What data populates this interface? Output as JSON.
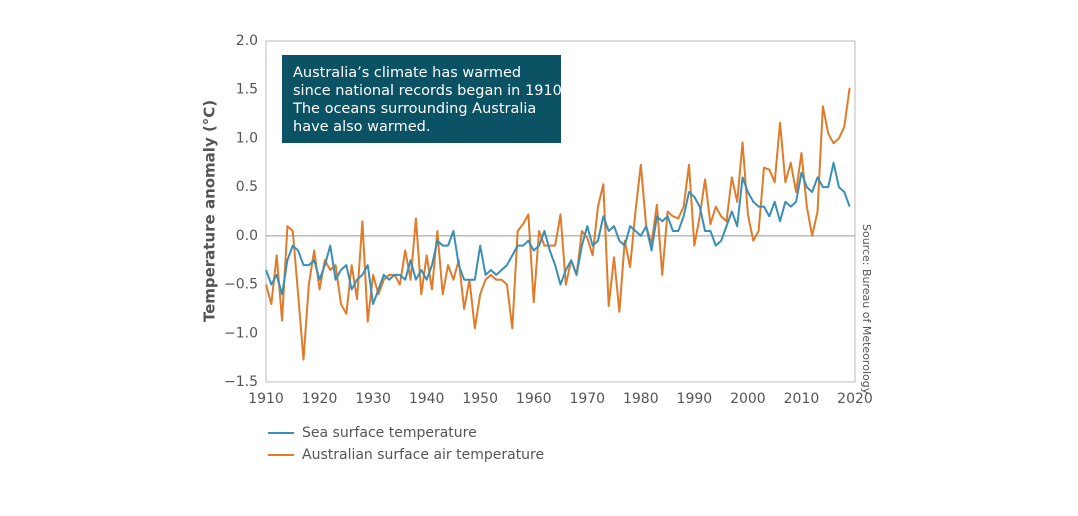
{
  "chart_data": {
    "type": "line",
    "annotation": [
      "Australia’s climate has warmed",
      "since national records began in 1910.",
      "The oceans surrounding Australia",
      "have also warmed."
    ],
    "y_label": "Temperature anomaly (°C)",
    "source": "Source: Bureau of Meteorology",
    "x": [
      1910,
      1911,
      1912,
      1913,
      1914,
      1915,
      1916,
      1917,
      1918,
      1919,
      1920,
      1921,
      1922,
      1923,
      1924,
      1925,
      1926,
      1927,
      1928,
      1929,
      1930,
      1931,
      1932,
      1933,
      1934,
      1935,
      1936,
      1937,
      1938,
      1939,
      1940,
      1941,
      1942,
      1943,
      1944,
      1945,
      1946,
      1947,
      1948,
      1949,
      1950,
      1951,
      1952,
      1953,
      1954,
      1955,
      1956,
      1957,
      1958,
      1959,
      1960,
      1961,
      1962,
      1963,
      1964,
      1965,
      1966,
      1967,
      1968,
      1969,
      1970,
      1971,
      1972,
      1973,
      1974,
      1975,
      1976,
      1977,
      1978,
      1979,
      1980,
      1981,
      1982,
      1983,
      1984,
      1985,
      1986,
      1987,
      1988,
      1989,
      1990,
      1991,
      1992,
      1993,
      1994,
      1995,
      1996,
      1997,
      1998,
      1999,
      2000,
      2001,
      2002,
      2003,
      2004,
      2005,
      2006,
      2007,
      2008,
      2009,
      2010,
      2011,
      2012,
      2013,
      2014,
      2015,
      2016,
      2017,
      2018,
      2019
    ],
    "series": [
      {
        "name": "Sea surface temperature",
        "color": "#3a8fb7",
        "values": [
          -0.35,
          -0.5,
          -0.4,
          -0.6,
          -0.25,
          -0.1,
          -0.15,
          -0.3,
          -0.3,
          -0.25,
          -0.45,
          -0.3,
          -0.1,
          -0.45,
          -0.35,
          -0.3,
          -0.55,
          -0.45,
          -0.4,
          -0.3,
          -0.7,
          -0.55,
          -0.4,
          -0.45,
          -0.4,
          -0.4,
          -0.45,
          -0.25,
          -0.45,
          -0.35,
          -0.45,
          -0.3,
          -0.05,
          -0.1,
          -0.1,
          0.05,
          -0.3,
          -0.45,
          -0.45,
          -0.45,
          -0.1,
          -0.4,
          -0.35,
          -0.4,
          -0.35,
          -0.3,
          -0.2,
          -0.1,
          -0.1,
          -0.05,
          -0.15,
          -0.1,
          0.05,
          -0.15,
          -0.3,
          -0.5,
          -0.35,
          -0.25,
          -0.4,
          -0.1,
          0.1,
          -0.1,
          -0.05,
          0.2,
          0.05,
          0.1,
          -0.05,
          -0.1,
          0.1,
          0.05,
          0.0,
          0.1,
          -0.15,
          0.2,
          0.15,
          0.2,
          0.05,
          0.05,
          0.2,
          0.45,
          0.4,
          0.3,
          0.05,
          0.05,
          -0.1,
          -0.05,
          0.1,
          0.25,
          0.1,
          0.6,
          0.45,
          0.35,
          0.3,
          0.3,
          0.2,
          0.35,
          0.15,
          0.35,
          0.3,
          0.35,
          0.65,
          0.5,
          0.45,
          0.6,
          0.5,
          0.5,
          0.75,
          0.5,
          0.45,
          0.3
        ]
      },
      {
        "name": "Australian surface air temperature",
        "color": "#e07b2a",
        "values": [
          -0.5,
          -0.7,
          -0.2,
          -0.87,
          0.1,
          0.05,
          -0.6,
          -1.27,
          -0.5,
          -0.15,
          -0.55,
          -0.25,
          -0.35,
          -0.3,
          -0.7,
          -0.8,
          -0.3,
          -0.65,
          0.15,
          -0.88,
          -0.4,
          -0.6,
          -0.45,
          -0.4,
          -0.4,
          -0.5,
          -0.15,
          -0.45,
          0.18,
          -0.6,
          -0.2,
          -0.55,
          0.05,
          -0.6,
          -0.3,
          -0.45,
          -0.25,
          -0.75,
          -0.45,
          -0.95,
          -0.6,
          -0.45,
          -0.4,
          -0.45,
          -0.45,
          -0.5,
          -0.95,
          0.05,
          0.12,
          0.22,
          -0.68,
          0.05,
          -0.1,
          -0.1,
          -0.1,
          0.22,
          -0.5,
          -0.25,
          -0.4,
          0.05,
          -0.02,
          -0.2,
          0.3,
          0.53,
          -0.72,
          -0.22,
          -0.78,
          -0.05,
          -0.32,
          0.25,
          0.73,
          0.1,
          -0.08,
          0.32,
          -0.4,
          0.25,
          0.2,
          0.18,
          0.3,
          0.73,
          -0.1,
          0.2,
          0.58,
          0.12,
          0.3,
          0.2,
          0.15,
          0.6,
          0.35,
          0.96,
          0.22,
          -0.05,
          0.05,
          0.7,
          0.68,
          0.55,
          1.16,
          0.55,
          0.75,
          0.45,
          0.85,
          0.3,
          0.0,
          0.25,
          1.33,
          1.05,
          0.95,
          1.0,
          1.12,
          1.52
        ]
      }
    ],
    "xlim": [
      1910,
      2020
    ],
    "xticks": [
      1910,
      1920,
      1930,
      1940,
      1950,
      1960,
      1970,
      1980,
      1990,
      2000,
      2010,
      2020
    ],
    "ylim": [
      -1.5,
      2.0
    ],
    "yticks": [
      {
        "value": -1.5,
        "label": "−1.5"
      },
      {
        "value": -1.0,
        "label": "−1.0"
      },
      {
        "value": -0.5,
        "label": "−0.5"
      },
      {
        "value": 0,
        "label": "0.0"
      },
      {
        "value": 0.5,
        "label": "0.5"
      },
      {
        "value": 1.0,
        "label": "1.0"
      },
      {
        "value": 1.5,
        "label": "1.5"
      },
      {
        "value": 2.0,
        "label": "2.0"
      }
    ],
    "zero_line": true,
    "legend": "bottom-left"
  }
}
